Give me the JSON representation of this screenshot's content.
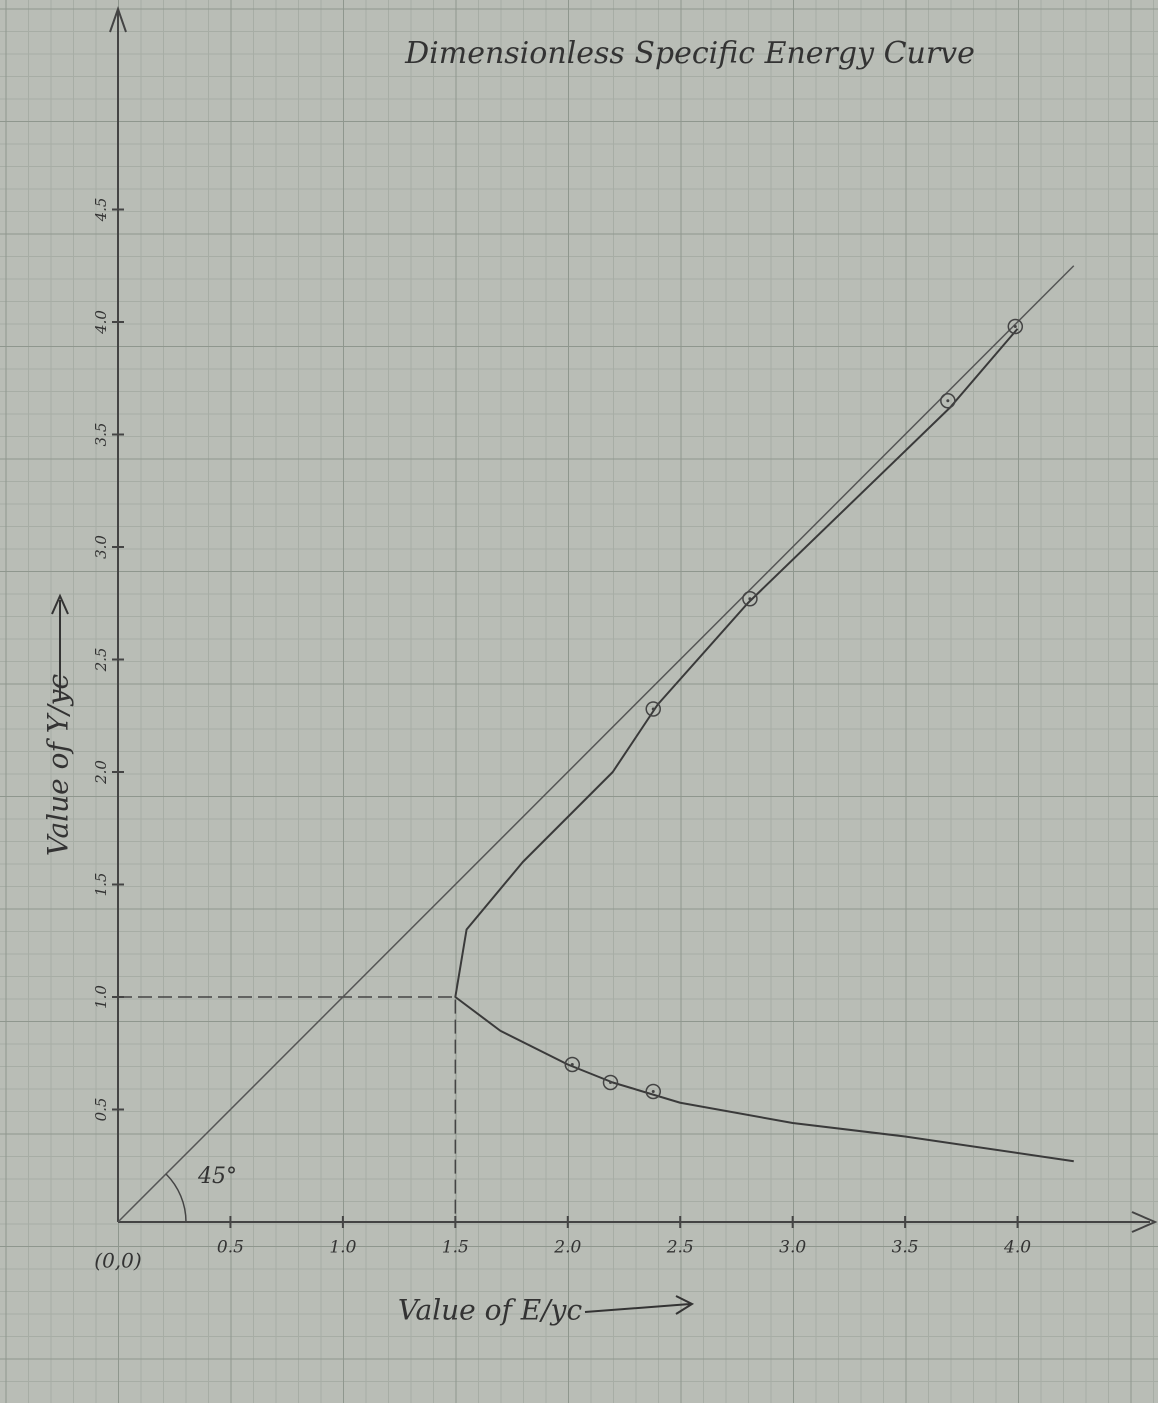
{
  "chart_data": {
    "type": "scatter",
    "title": "Dimensionless Specific Energy Curve",
    "x_label": "Value of E/yc",
    "y_label": "Value of Y/yc",
    "origin_label": "(0,0)",
    "angle_label": "45°",
    "points": {
      "x": [
        2.02,
        2.19,
        2.38,
        2.38,
        2.81,
        3.69,
        3.99
      ],
      "y": [
        0.7,
        0.62,
        0.58,
        2.28,
        2.77,
        3.65,
        3.98
      ],
      "color": "#444"
    },
    "curve": {
      "x": [
        4.25,
        3.5,
        3.0,
        2.5,
        2.2,
        2.0,
        1.7,
        1.5,
        1.55,
        1.8,
        2.2,
        2.4,
        2.8,
        3.7,
        4.0
      ],
      "y": [
        0.27,
        0.38,
        0.44,
        0.53,
        0.62,
        0.7,
        0.85,
        1.0,
        1.3,
        1.6,
        2.0,
        2.3,
        2.75,
        3.62,
        3.97
      ],
      "color": "#3a3a3a"
    },
    "line_45": {
      "x": [
        0,
        4.25
      ],
      "y": [
        0,
        4.25
      ],
      "color": "#555"
    },
    "critical_point": {
      "x": 1.5,
      "y": 1.0
    },
    "xlim": [
      0,
      4.5
    ],
    "ylim": [
      0,
      5.4
    ],
    "xticks": [
      0.5,
      {
        "value": 1,
        "label": "1.0"
      },
      1.5,
      {
        "value": 2,
        "label": "2.0"
      },
      2.5,
      {
        "value": 3,
        "label": "3.0"
      },
      3.5,
      {
        "value": 4,
        "label": "4.0"
      }
    ],
    "yticks": [
      0.5,
      {
        "value": 1,
        "label": "1.0"
      },
      1.5,
      {
        "value": 2,
        "label": "2.0"
      },
      2.5,
      {
        "value": 3,
        "label": "3.0"
      },
      3.5,
      {
        "value": 4,
        "label": "4.0"
      },
      4.5
    ]
  }
}
